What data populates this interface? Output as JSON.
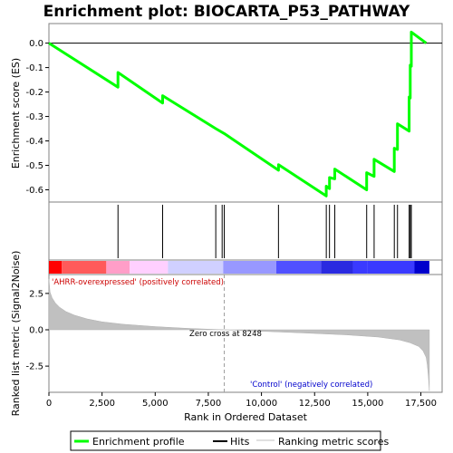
{
  "title": "Enrichment plot: BIOCARTA_P53_PATHWAY",
  "chart_data": [
    {
      "type": "line",
      "panel": "enrichment",
      "ylabel": "Enrichment score (ES)",
      "ylim": [
        -0.65,
        0.08
      ],
      "yticks": [
        "0.0",
        "-0.1",
        "-0.2",
        "-0.3",
        "-0.4",
        "-0.5",
        "-0.6"
      ],
      "ytick_values": [
        0.0,
        -0.1,
        -0.2,
        -0.3,
        -0.4,
        -0.5,
        -0.6
      ],
      "grid": false,
      "color": "#00ff00",
      "series": [
        {
          "x": [
            0,
            3250,
            3250,
            5350,
            5350,
            7850,
            8250,
            10800,
            10800,
            13050,
            13050,
            13200,
            13200,
            13450,
            13450,
            14950,
            14950,
            15300,
            15300,
            16250,
            16250,
            16400,
            16400,
            16950,
            16950,
            17000,
            17000,
            17050,
            17050,
            17750
          ],
          "y": [
            0.0,
            -0.18,
            -0.12,
            -0.245,
            -0.215,
            -0.35,
            -0.37,
            -0.52,
            -0.497,
            -0.625,
            -0.585,
            -0.595,
            -0.55,
            -0.555,
            -0.515,
            -0.6,
            -0.53,
            -0.545,
            -0.475,
            -0.525,
            -0.43,
            -0.435,
            -0.33,
            -0.36,
            -0.22,
            -0.225,
            -0.09,
            -0.095,
            0.045,
            0.0
          ]
        }
      ]
    },
    {
      "type": "scatter",
      "panel": "hits",
      "marker": "vertical-line",
      "x": [
        3250,
        5350,
        7850,
        8150,
        8250,
        10800,
        13050,
        13200,
        13450,
        14950,
        15300,
        16250,
        16400,
        16950,
        17000,
        17050
      ]
    },
    {
      "type": "heatmap",
      "panel": "ranking-colorbar",
      "colors": [
        "#ff0000",
        "#ff5a5a",
        "#ff9ec8",
        "#ffd0ff",
        "#d0d0ff",
        "#9898ff",
        "#5050ff",
        "#2a2ae0"
      ],
      "bounds": [
        0,
        600,
        2700,
        3800,
        5600,
        8200,
        10700,
        12800,
        14300,
        15000,
        17200,
        17900
      ]
    },
    {
      "type": "area",
      "panel": "ranked-metric",
      "xlabel": "Rank in Ordered Dataset",
      "ylabel": "Ranked list metric (Signal2Noise)",
      "xlim": [
        0,
        18500
      ],
      "ylim": [
        -4.3,
        3.8
      ],
      "xticks": [
        "0",
        "2,500",
        "5,000",
        "7,500",
        "10,000",
        "12,500",
        "15,000",
        "17,500"
      ],
      "xtick_values": [
        0,
        2500,
        5000,
        7500,
        10000,
        12500,
        15000,
        17500
      ],
      "yticks": [
        "2.5",
        "0.0",
        "-2.5"
      ],
      "ytick_values": [
        2.5,
        0.0,
        -2.5
      ],
      "zero_cross": 8248,
      "x": [
        0,
        50,
        150,
        300,
        500,
        800,
        1200,
        1800,
        2500,
        3500,
        5000,
        6500,
        8248,
        10000,
        12000,
        14000,
        15500,
        16500,
        17000,
        17400,
        17600,
        17750,
        17800,
        17850,
        17900
      ],
      "values": [
        3.5,
        2.6,
        2.2,
        1.85,
        1.55,
        1.25,
        1.0,
        0.75,
        0.55,
        0.38,
        0.22,
        0.1,
        0.0,
        -0.1,
        -0.22,
        -0.35,
        -0.5,
        -0.7,
        -0.9,
        -1.15,
        -1.45,
        -1.9,
        -2.4,
        -3.2,
        -4.2
      ],
      "fill": "#c0c0c0"
    }
  ],
  "annotations": {
    "zero_cross": "Zero cross at 8248",
    "positive": "'AHRR-overexpressed' (positively correlated)",
    "negative": "'Control' (negatively correlated)"
  },
  "legend": {
    "placement": "bottom",
    "items": [
      "Enrichment profile",
      "Hits",
      "Ranking metric scores"
    ]
  }
}
